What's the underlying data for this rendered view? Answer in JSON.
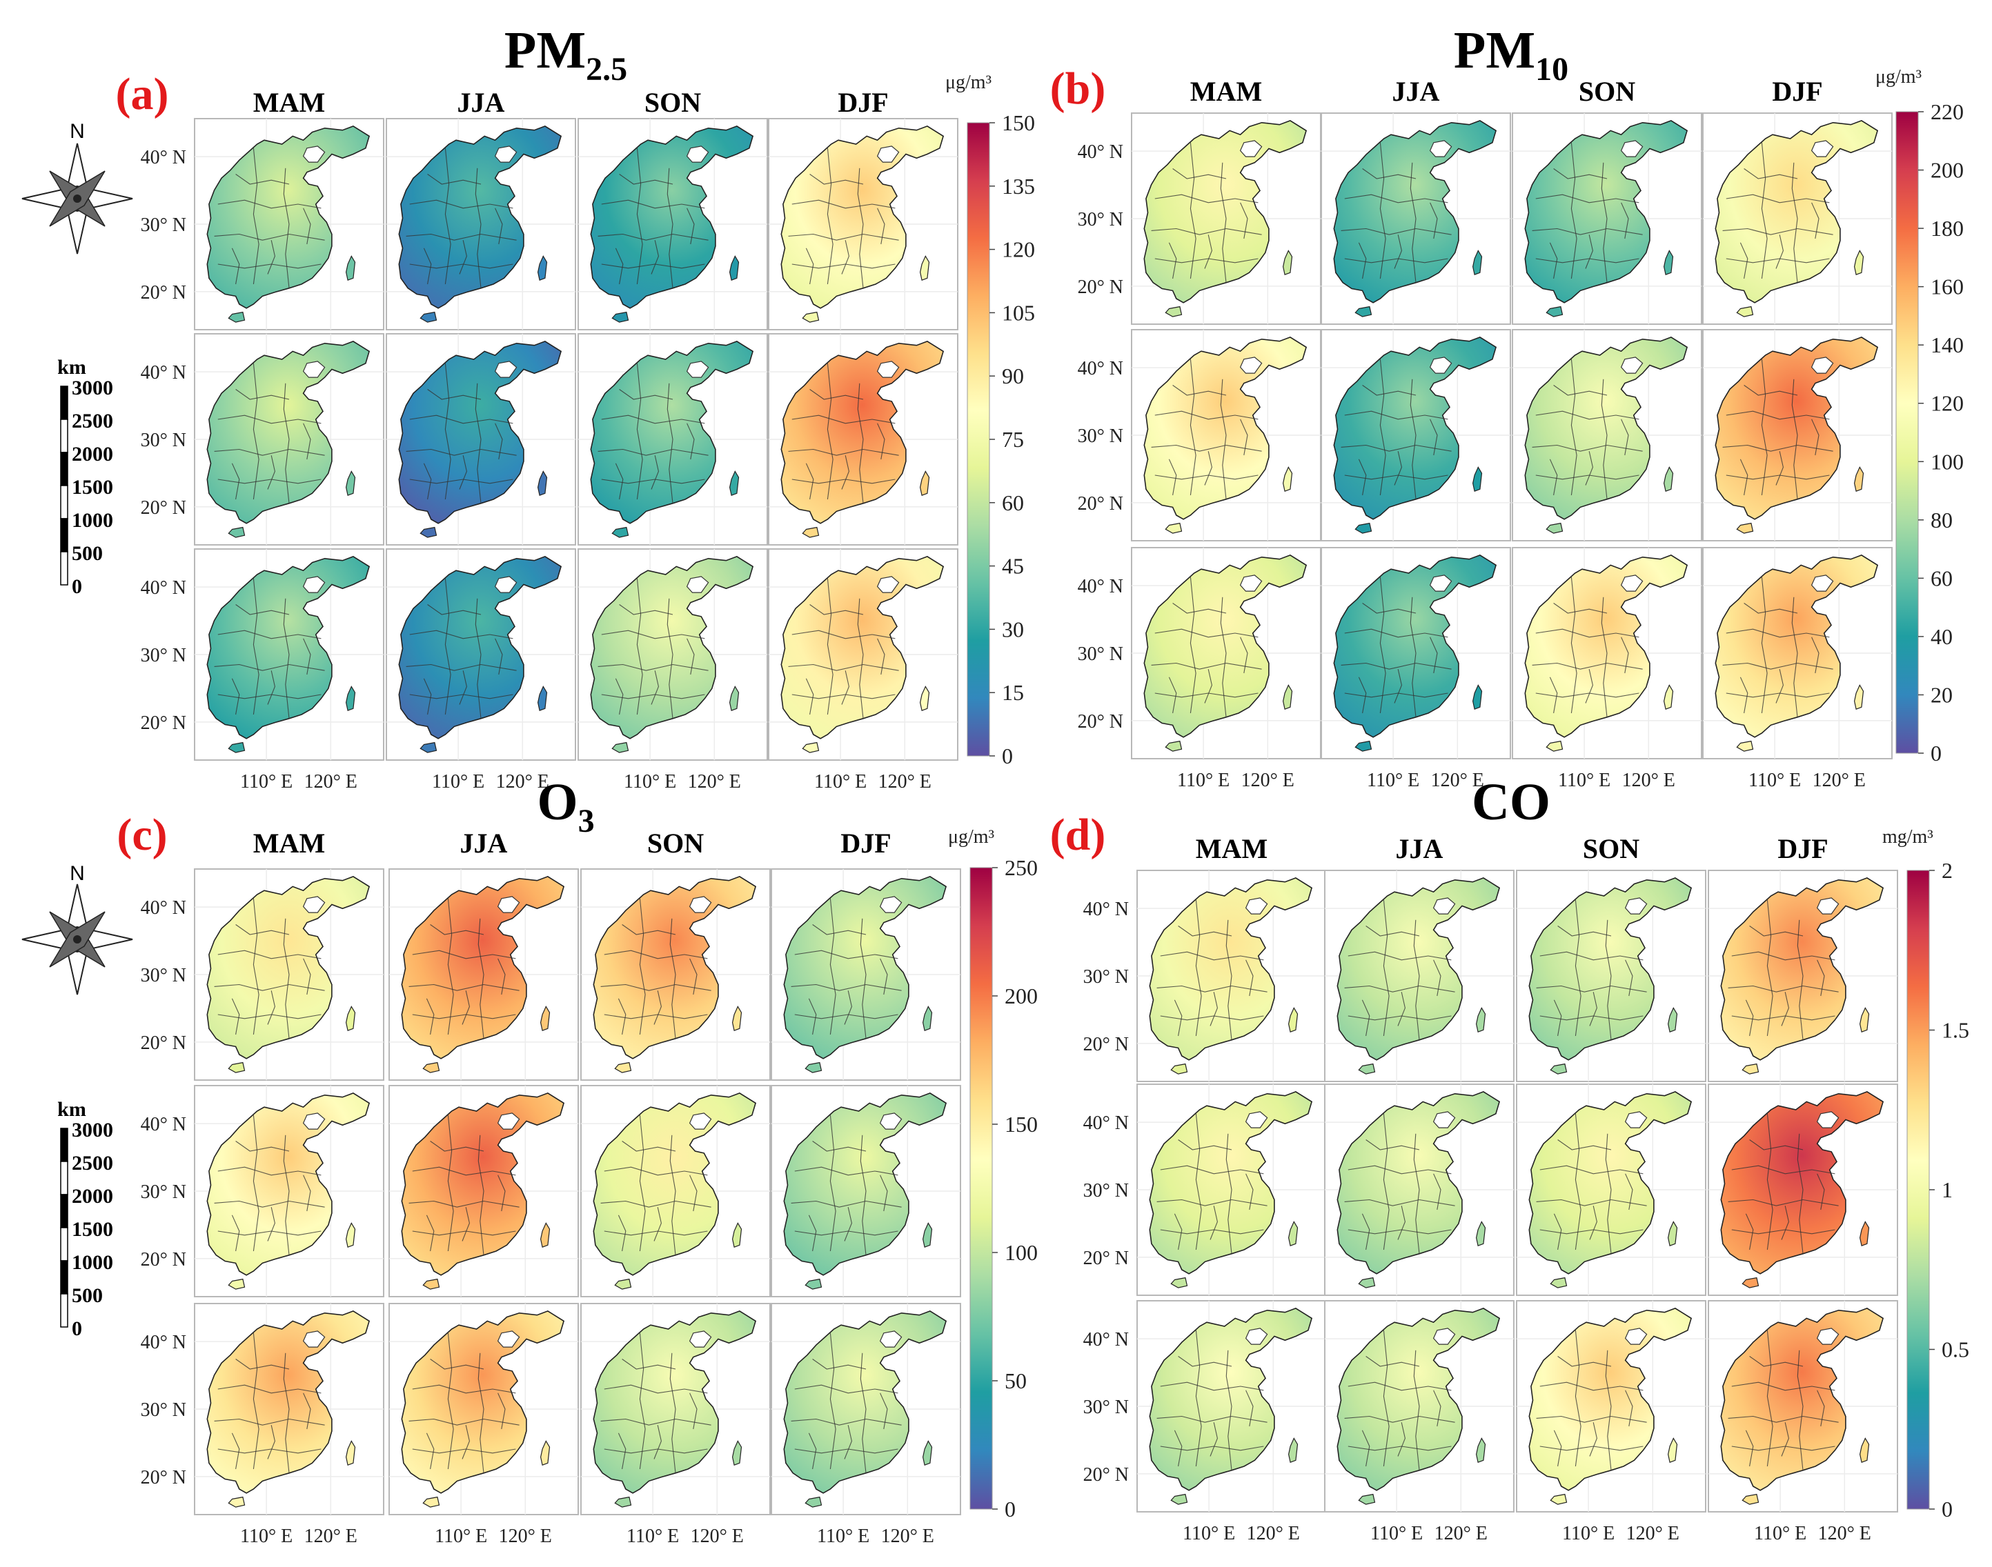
{
  "figure": {
    "row_labels_note": "",
    "seasons": [
      "MAM",
      "JJA",
      "SON",
      "DJF"
    ],
    "lat_labels": [
      "40° N",
      "30° N",
      "20° N"
    ],
    "lon_labels": [
      "110° E",
      "120° E"
    ],
    "compass_label": "N",
    "scalebar": {
      "unit": "km",
      "ticks": [
        "3000",
        "2500",
        "2000",
        "1500",
        "1000",
        "500",
        "0"
      ]
    },
    "panels": [
      {
        "letter": "(a)",
        "title_main": "PM",
        "title_sub": "2.5",
        "unit": "μg/m³",
        "colorbar": {
          "min": 0,
          "max": 150,
          "ticks": [
            "150",
            "135",
            "120",
            "105",
            "90",
            "75",
            "60",
            "45",
            "30",
            "15",
            "0"
          ]
        },
        "seasonal_level": [
          [
            0.32,
            0.13,
            0.2,
            0.55
          ],
          [
            0.33,
            0.1,
            0.25,
            0.7
          ],
          [
            0.26,
            0.12,
            0.38,
            0.58
          ]
        ]
      },
      {
        "letter": "(b)",
        "title_main": "PM",
        "title_sub": "10",
        "unit": "μg/m³",
        "colorbar": {
          "min": 0,
          "max": 220,
          "ticks": [
            "220",
            "200",
            "180",
            "160",
            "140",
            "120",
            "100",
            "80",
            "60",
            "40",
            "20",
            "0"
          ]
        },
        "seasonal_level": [
          [
            0.45,
            0.25,
            0.28,
            0.52
          ],
          [
            0.55,
            0.22,
            0.4,
            0.7
          ],
          [
            0.45,
            0.22,
            0.55,
            0.62
          ]
        ]
      },
      {
        "letter": "(c)",
        "title_main": "O",
        "title_sub": "3",
        "unit": "μg/m³",
        "colorbar": {
          "min": 0,
          "max": 250,
          "ticks": [
            "250",
            "200",
            "150",
            "100",
            "50",
            "0"
          ]
        },
        "seasonal_level": [
          [
            0.5,
            0.72,
            0.66,
            0.36
          ],
          [
            0.55,
            0.72,
            0.47,
            0.36
          ],
          [
            0.62,
            0.64,
            0.4,
            0.38
          ]
        ]
      },
      {
        "letter": "(d)",
        "title_main": "CO",
        "title_sub": "",
        "unit": "mg/m³",
        "colorbar": {
          "min": 0,
          "max": 2,
          "ticks": [
            "2",
            "1.5",
            "1",
            "0.5",
            "0"
          ]
        },
        "seasonal_level": [
          [
            0.5,
            0.4,
            0.4,
            0.66
          ],
          [
            0.45,
            0.4,
            0.45,
            0.8
          ],
          [
            0.42,
            0.4,
            0.55,
            0.68
          ]
        ]
      }
    ],
    "palette": [
      "#5e4fa2",
      "#3288bd",
      "#1f9ea2",
      "#66c2a5",
      "#abdda4",
      "#e6f598",
      "#ffffbf",
      "#fee08b",
      "#fdae61",
      "#f46d43",
      "#d53e4f",
      "#9e0142"
    ]
  }
}
